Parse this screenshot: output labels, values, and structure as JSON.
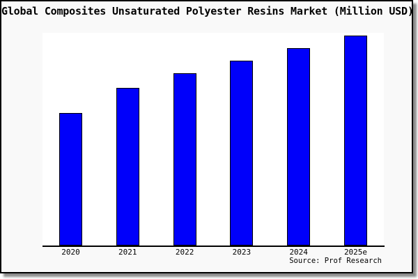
{
  "page": {
    "background": "#ffffff"
  },
  "frame": {
    "background": "#f9f9f9",
    "border_color": "#000000",
    "shadow_color": "#8c8c8c"
  },
  "chart_data": {
    "type": "bar",
    "title": "Global Composites Unsaturated Polyester Resins Market (Million USD)",
    "categories": [
      "2020",
      "2021",
      "2022",
      "2023",
      "2024",
      "2025e"
    ],
    "values": [
      63,
      75,
      82,
      88,
      94,
      100
    ],
    "values_note": "No y-axis scale or data labels shown in the chart; values are estimated bar heights relative to the tallest bar (2025e = 100)",
    "xlabel": "",
    "ylabel": "",
    "y_axis_labels_shown": false,
    "grid": false,
    "legend": false,
    "bar_color": "#0000fa",
    "bar_border_color": "#000000",
    "plot_background": "#ffffff",
    "axis_line_color": "#000000"
  },
  "source": {
    "text": "Source: Prof Research"
  }
}
